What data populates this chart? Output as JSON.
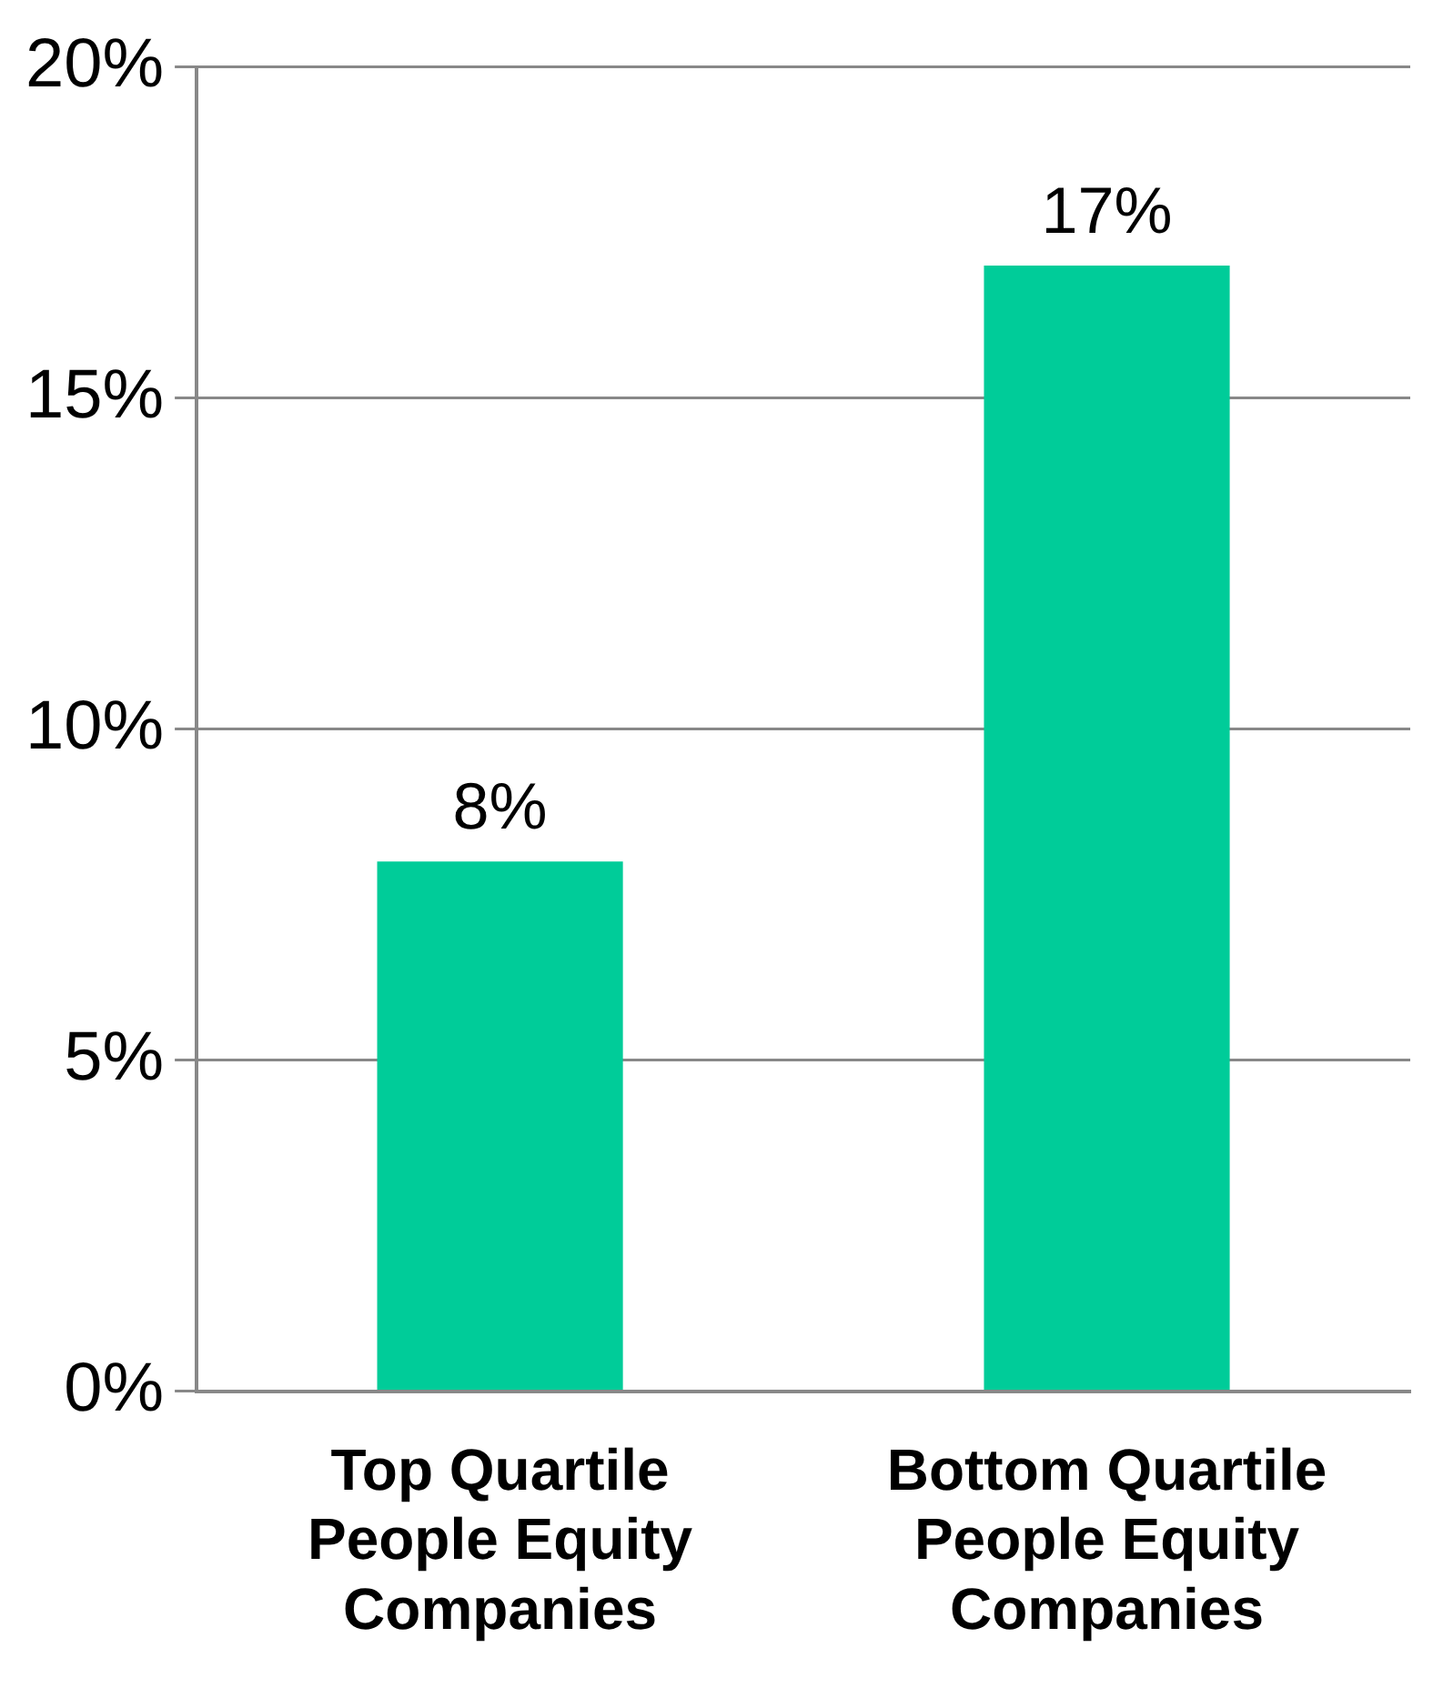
{
  "chart_data": {
    "type": "bar",
    "categories": [
      "Top Quartile\nPeople Equity\nCompanies",
      "Bottom Quartile\nPeople Equity\nCompanies"
    ],
    "values": [
      8,
      17
    ],
    "color": "#00cc99",
    "ylim": [
      0,
      20
    ],
    "yticks": [
      {
        "value": 0,
        "label": "0%"
      },
      {
        "value": 5,
        "label": "5%"
      },
      {
        "value": 10,
        "label": "10%"
      },
      {
        "value": 15,
        "label": "15%"
      },
      {
        "value": 20,
        "label": "20%"
      }
    ],
    "value_labels": [
      "8%",
      "17%"
    ],
    "grid": "y",
    "legend": false
  }
}
